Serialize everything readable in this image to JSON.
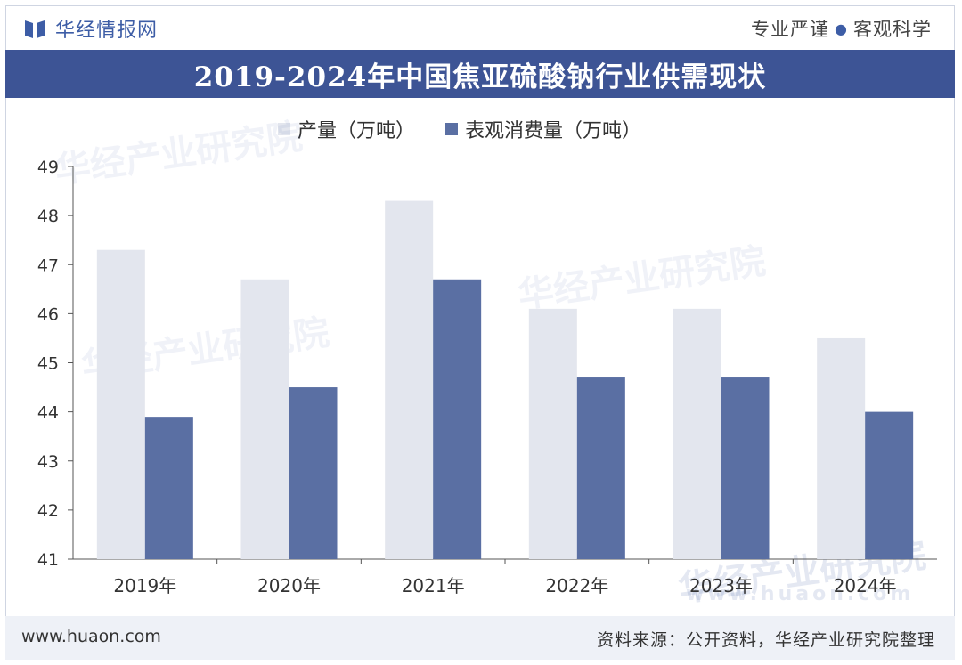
{
  "header": {
    "brand_name": "华经情报网",
    "slogan_left": "专业严谨",
    "slogan_right": "客观科学"
  },
  "title": "2019-2024年中国焦亚硫酸钠行业供需现状",
  "colors": {
    "title_bar": "#3d5495",
    "series_production": "#e3e6ee",
    "series_consumption": "#5a6fa3",
    "brand": "#3d5da6"
  },
  "chart_data": {
    "type": "bar",
    "categories": [
      "2019年",
      "2020年",
      "2021年",
      "2022年",
      "2023年",
      "2024年"
    ],
    "series": [
      {
        "name": "产量（万吨）",
        "values": [
          47.3,
          46.7,
          48.3,
          46.1,
          46.1,
          45.5
        ]
      },
      {
        "name": "表观消费量（万吨）",
        "values": [
          43.9,
          44.5,
          46.7,
          44.7,
          44.7,
          44.0
        ]
      }
    ],
    "ylim": [
      41,
      49
    ],
    "yticks": [
      41,
      42,
      43,
      44,
      45,
      46,
      47,
      48,
      49
    ],
    "xlabel": "",
    "ylabel": "",
    "legend": "top",
    "grid": false
  },
  "watermark": {
    "text": "华经产业研究院",
    "url": "www.huaon.com"
  },
  "footer": {
    "url": "www.huaon.com",
    "source": "资料来源：公开资料，华经产业研究院整理"
  }
}
